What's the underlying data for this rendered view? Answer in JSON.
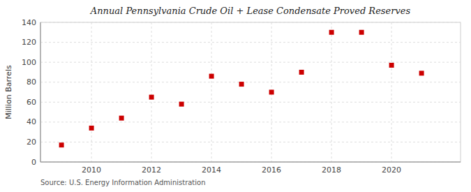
{
  "chart_data": {
    "type": "scatter",
    "title": "Annual Pennsylvania Crude Oil + Lease Condensate Proved Reserves",
    "y_label": "Million Barrels",
    "annotations": [
      "Source: U.S. Energy Information Administration"
    ],
    "x": [
      2009,
      2010,
      2011,
      2012,
      2013,
      2014,
      2015,
      2016,
      2017,
      2018,
      2019,
      2020,
      2021
    ],
    "values": [
      17,
      34,
      44,
      65,
      58,
      86,
      78,
      70,
      90,
      130,
      130,
      97,
      89
    ],
    "xlim": [
      2008.3,
      2022.3
    ],
    "xticks": [
      2010,
      2012,
      2014,
      2016,
      2018,
      2020
    ],
    "ylim": [
      0,
      140
    ],
    "yticks": [
      0,
      20,
      40,
      60,
      80,
      100,
      120,
      140
    ],
    "color": "#cc0000",
    "marker": "square",
    "grid": true
  }
}
